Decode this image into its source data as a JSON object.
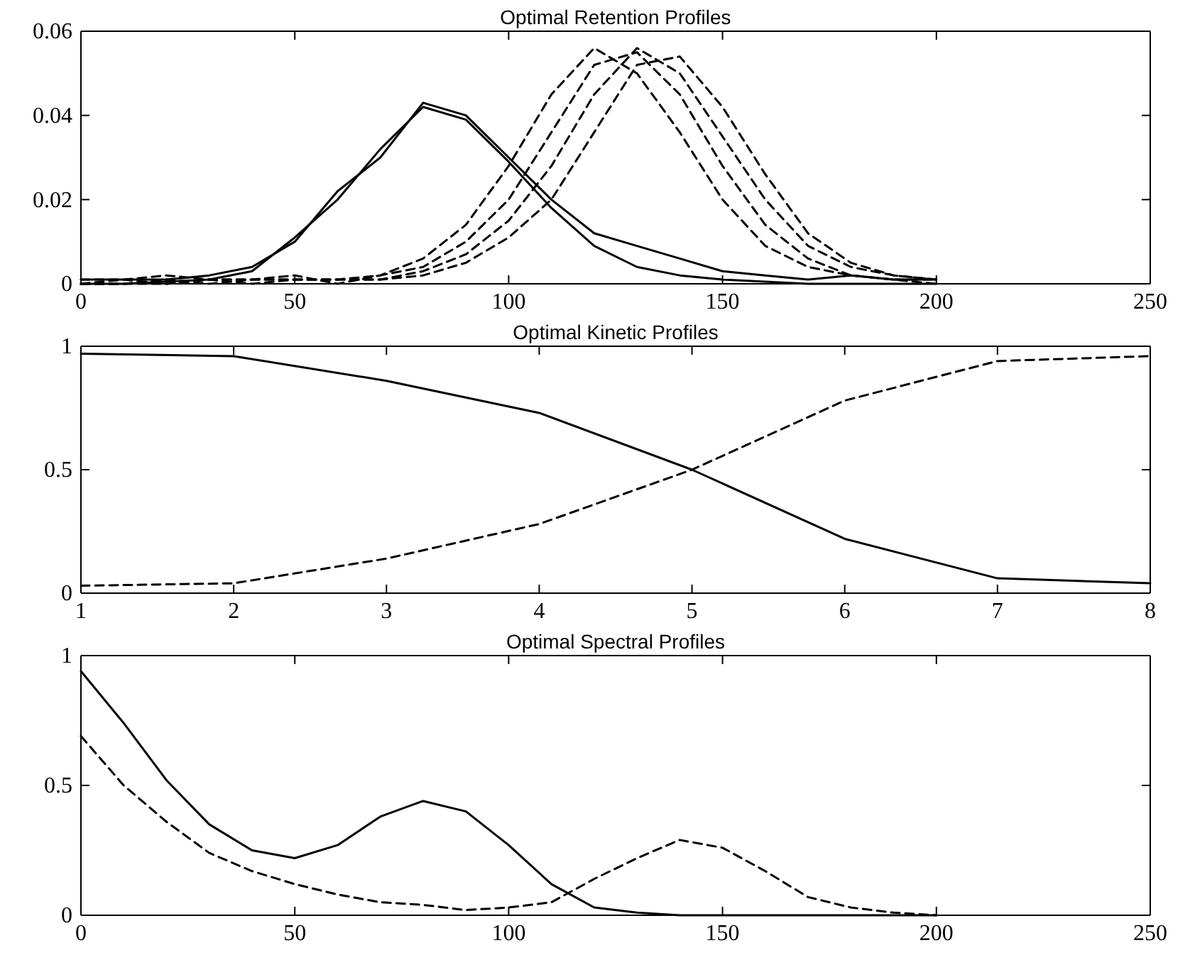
{
  "chart_data": [
    {
      "type": "line",
      "title": "Optimal Retention Profiles",
      "x": [
        0,
        10,
        20,
        30,
        40,
        50,
        60,
        70,
        80,
        90,
        100,
        110,
        120,
        130,
        140,
        150,
        160,
        170,
        180,
        190,
        200
      ],
      "xlim": [
        0,
        250
      ],
      "xticks": [
        0,
        50,
        100,
        150,
        200,
        250
      ],
      "ylim": [
        0,
        0.06
      ],
      "yticks": [
        0,
        0.02,
        0.04,
        0.06
      ],
      "grid": false,
      "series": [
        {
          "color": "#000000",
          "line_style": "solid",
          "values": [
            0,
            0,
            0.0005,
            0.001,
            0.003,
            0.011,
            0.02,
            0.032,
            0.042,
            0.039,
            0.029,
            0.018,
            0.009,
            0.004,
            0.002,
            0.001,
            0.0005,
            0,
            0,
            0,
            0
          ]
        },
        {
          "color": "#000000",
          "line_style": "solid",
          "values": [
            0.001,
            0.001,
            0.001,
            0.002,
            0.004,
            0.01,
            0.022,
            0.03,
            0.043,
            0.04,
            0.03,
            0.02,
            0.012,
            0.009,
            0.006,
            0.003,
            0.002,
            0.001,
            0.002,
            0.001,
            0.001
          ]
        },
        {
          "color": "#000000",
          "line_style": "dashed",
          "values": [
            0.001,
            0.001,
            0.002,
            0.001,
            0.001,
            0.002,
            0,
            0.002,
            0.006,
            0.014,
            0.028,
            0.045,
            0.056,
            0.05,
            0.036,
            0.02,
            0.009,
            0.004,
            0.002,
            0.001,
            0.001
          ]
        },
        {
          "color": "#000000",
          "line_style": "dashed",
          "values": [
            0,
            0.001,
            0,
            0.001,
            0.001,
            0.001,
            0.001,
            0.002,
            0.004,
            0.01,
            0.02,
            0.036,
            0.052,
            0.055,
            0.045,
            0.028,
            0.014,
            0.006,
            0.002,
            0.001,
            0
          ]
        },
        {
          "color": "#000000",
          "line_style": "dashed",
          "values": [
            0,
            0,
            0.001,
            0,
            0.001,
            0.001,
            0.001,
            0.001,
            0.003,
            0.007,
            0.015,
            0.028,
            0.045,
            0.056,
            0.05,
            0.035,
            0.02,
            0.009,
            0.004,
            0.002,
            0.001
          ]
        },
        {
          "color": "#000000",
          "line_style": "dashed",
          "values": [
            0,
            0,
            0,
            0.001,
            0,
            0.001,
            0.001,
            0.001,
            0.002,
            0.005,
            0.011,
            0.02,
            0.036,
            0.052,
            0.054,
            0.042,
            0.026,
            0.012,
            0.005,
            0.002,
            0.001
          ]
        }
      ]
    },
    {
      "type": "line",
      "title": "Optimal Kinetic Profiles",
      "x": [
        1,
        2,
        3,
        4,
        5,
        6,
        7,
        8
      ],
      "xlim": [
        1,
        8
      ],
      "xticks": [
        1,
        2,
        3,
        4,
        5,
        6,
        7,
        8
      ],
      "ylim": [
        0,
        1
      ],
      "yticks": [
        0,
        0.5,
        1
      ],
      "grid": false,
      "series": [
        {
          "color": "#000000",
          "line_style": "solid",
          "values": [
            0.97,
            0.96,
            0.86,
            0.73,
            0.5,
            0.22,
            0.06,
            0.04
          ]
        },
        {
          "color": "#000000",
          "line_style": "dashed",
          "values": [
            0.03,
            0.04,
            0.14,
            0.28,
            0.5,
            0.78,
            0.94,
            0.96
          ]
        }
      ]
    },
    {
      "type": "line",
      "title": "Optimal Spectral Profiles",
      "x": [
        0,
        10,
        20,
        30,
        40,
        50,
        60,
        70,
        80,
        90,
        100,
        110,
        120,
        130,
        140,
        150,
        160,
        170,
        180,
        190,
        200
      ],
      "xlim": [
        0,
        250
      ],
      "xticks": [
        0,
        50,
        100,
        150,
        200,
        250
      ],
      "ylim": [
        0,
        1
      ],
      "yticks": [
        0,
        0.5,
        1
      ],
      "grid": false,
      "series": [
        {
          "color": "#000000",
          "line_style": "solid",
          "values": [
            0.94,
            0.74,
            0.52,
            0.35,
            0.25,
            0.22,
            0.27,
            0.38,
            0.44,
            0.4,
            0.27,
            0.12,
            0.03,
            0.01,
            0,
            0,
            0,
            0,
            0,
            0,
            0
          ]
        },
        {
          "color": "#000000",
          "line_style": "dashed",
          "values": [
            0.69,
            0.5,
            0.36,
            0.24,
            0.17,
            0.12,
            0.08,
            0.05,
            0.04,
            0.02,
            0.03,
            0.05,
            0.14,
            0.22,
            0.29,
            0.26,
            0.17,
            0.07,
            0.03,
            0.01,
            0
          ]
        }
      ]
    }
  ]
}
